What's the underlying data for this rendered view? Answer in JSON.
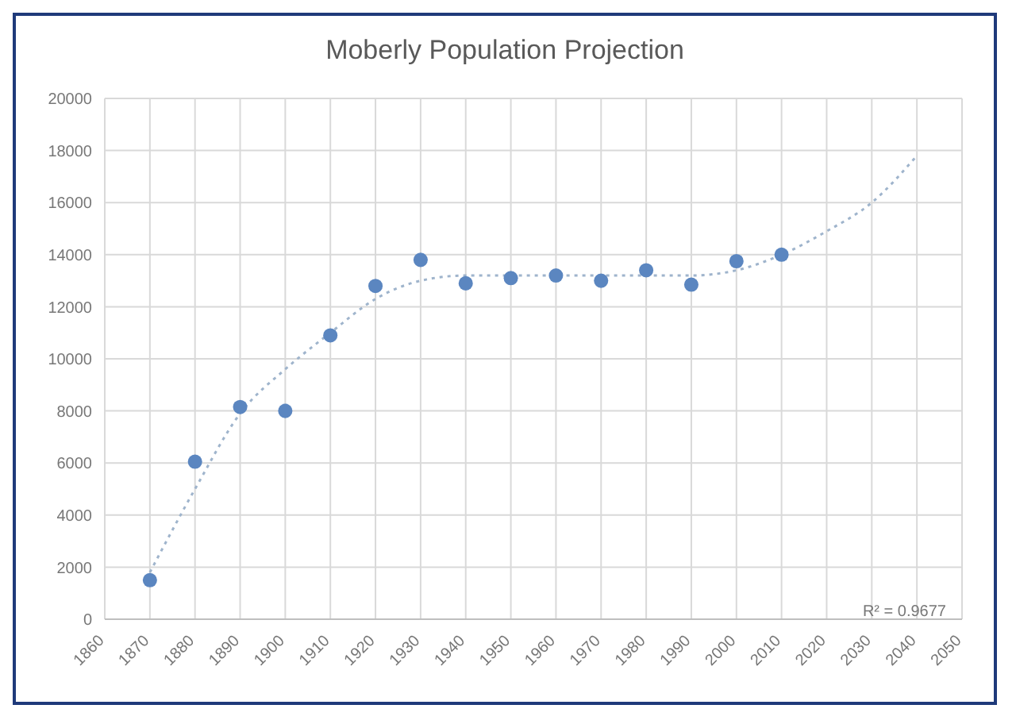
{
  "chart_data": {
    "type": "scatter",
    "title": "Moberly Population Projection",
    "xlim": [
      1860,
      2050
    ],
    "xticks": [
      1860,
      1870,
      1880,
      1890,
      1900,
      1910,
      1920,
      1930,
      1940,
      1950,
      1960,
      1970,
      1980,
      1990,
      2000,
      2010,
      2020,
      2030,
      2040,
      2050
    ],
    "ylim": [
      0,
      20000
    ],
    "yticks": [
      0,
      2000,
      4000,
      6000,
      8000,
      10000,
      12000,
      14000,
      16000,
      18000,
      20000
    ],
    "grid": true,
    "legend": false,
    "series": [
      {
        "type": "scatter",
        "marker": "circle",
        "color": "#5b86c0",
        "x": [
          1870,
          1880,
          1890,
          1900,
          1910,
          1920,
          1930,
          1940,
          1950,
          1960,
          1970,
          1980,
          1990,
          2000,
          2010
        ],
        "values": [
          1500,
          6050,
          8150,
          8000,
          10900,
          12800,
          13800,
          12900,
          13100,
          13200,
          13000,
          13400,
          12850,
          13750,
          14000
        ]
      },
      {
        "type": "line",
        "line_style": "dotted",
        "color": "#9fb4cc",
        "x": [
          1870,
          1880,
          1890,
          1900,
          1910,
          1920,
          1930,
          1940,
          1950,
          1960,
          1970,
          1980,
          1990,
          2000,
          2010,
          2020,
          2030,
          2040
        ],
        "values": [
          1800,
          5000,
          7900,
          9600,
          11000,
          12300,
          13000,
          13200,
          13200,
          13200,
          13200,
          13200,
          13200,
          13400,
          14000,
          14900,
          16000,
          17800
        ]
      }
    ],
    "annotations": [
      "R² = 0.9677"
    ]
  }
}
